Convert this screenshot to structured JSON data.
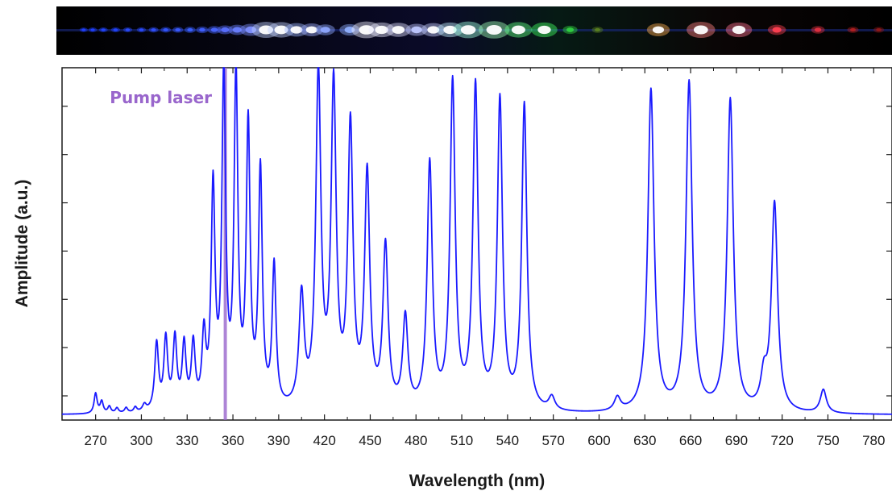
{
  "chart_data": {
    "type": "line",
    "xlabel": "Wavelength (nm)",
    "ylabel": "Amplitude (a.u.)",
    "xlim": [
      248,
      792
    ],
    "ylim": [
      0,
      1.05
    ],
    "x_ticks": [
      270,
      300,
      330,
      360,
      390,
      420,
      450,
      480,
      510,
      540,
      570,
      600,
      630,
      660,
      690,
      720,
      750,
      780
    ],
    "y_tick_labels": "none",
    "grid": false,
    "series_color": "#1a1aff",
    "baseline": 0.015,
    "peaks": [
      {
        "x": 270,
        "y": 0.06
      },
      {
        "x": 274,
        "y": 0.035
      },
      {
        "x": 279,
        "y": 0.02
      },
      {
        "x": 284,
        "y": 0.015
      },
      {
        "x": 290,
        "y": 0.015
      },
      {
        "x": 296,
        "y": 0.015
      },
      {
        "x": 302,
        "y": 0.02
      },
      {
        "x": 310,
        "y": 0.2
      },
      {
        "x": 316,
        "y": 0.21
      },
      {
        "x": 322,
        "y": 0.21
      },
      {
        "x": 328,
        "y": 0.19
      },
      {
        "x": 334,
        "y": 0.19
      },
      {
        "x": 341,
        "y": 0.21
      },
      {
        "x": 347,
        "y": 0.65
      },
      {
        "x": 354,
        "y": 0.98
      },
      {
        "x": 362,
        "y": 0.98
      },
      {
        "x": 370,
        "y": 0.83
      },
      {
        "x": 378,
        "y": 0.7
      },
      {
        "x": 387,
        "y": 0.42
      },
      {
        "x": 405,
        "y": 0.33
      },
      {
        "x": 416,
        "y": 0.99
      },
      {
        "x": 426,
        "y": 0.95
      },
      {
        "x": 437,
        "y": 0.83
      },
      {
        "x": 448,
        "y": 0.69
      },
      {
        "x": 460,
        "y": 0.48
      },
      {
        "x": 473,
        "y": 0.27
      },
      {
        "x": 489,
        "y": 0.73
      },
      {
        "x": 504,
        "y": 0.97
      },
      {
        "x": 519,
        "y": 0.96
      },
      {
        "x": 535,
        "y": 0.92
      },
      {
        "x": 551,
        "y": 0.91
      },
      {
        "x": 569,
        "y": 0.04
      },
      {
        "x": 612,
        "y": 0.04
      },
      {
        "x": 634,
        "y": 0.96
      },
      {
        "x": 659,
        "y": 0.98
      },
      {
        "x": 686,
        "y": 0.93
      },
      {
        "x": 708,
        "y": 0.09
      },
      {
        "x": 715,
        "y": 0.62
      },
      {
        "x": 747,
        "y": 0.07
      }
    ],
    "annotation": {
      "label": "Pump laser",
      "x": 355,
      "color": "#9966cc"
    }
  },
  "spectrum_image": {
    "background": "#000000",
    "spots": [
      {
        "x": 262,
        "y": 0.02,
        "color": "#2040ff"
      },
      {
        "x": 268,
        "y": 0.03,
        "color": "#2040ff"
      },
      {
        "x": 275,
        "y": 0.04,
        "color": "#2244ff"
      },
      {
        "x": 283,
        "y": 0.05,
        "color": "#2244ff"
      },
      {
        "x": 291,
        "y": 0.05,
        "color": "#2a4cff"
      },
      {
        "x": 300,
        "y": 0.06,
        "color": "#2a4cff"
      },
      {
        "x": 308,
        "y": 0.08,
        "color": "#3050ff"
      },
      {
        "x": 316,
        "y": 0.1,
        "color": "#3355ff"
      },
      {
        "x": 324,
        "y": 0.12,
        "color": "#3a5aff"
      },
      {
        "x": 332,
        "y": 0.14,
        "color": "#3a60ff"
      },
      {
        "x": 340,
        "y": 0.18,
        "color": "#4060ff"
      },
      {
        "x": 348,
        "y": 0.25,
        "color": "#4a66ff"
      },
      {
        "x": 355,
        "y": 0.35,
        "color": "#5a70ff"
      },
      {
        "x": 363,
        "y": 0.45,
        "color": "#6a80ff"
      },
      {
        "x": 372,
        "y": 0.6,
        "color": "#7f90ff"
      },
      {
        "x": 382,
        "y": 0.9,
        "color": "#bfd0ff"
      },
      {
        "x": 392,
        "y": 0.85,
        "color": "#c0d0ff"
      },
      {
        "x": 402,
        "y": 0.7,
        "color": "#a0b8ff"
      },
      {
        "x": 412,
        "y": 0.65,
        "color": "#9fb0ff"
      },
      {
        "x": 421,
        "y": 0.5,
        "color": "#8fa8ff"
      },
      {
        "x": 437,
        "y": 0.55,
        "color": "#90b0ff"
      },
      {
        "x": 448,
        "y": 0.95,
        "color": "#f0f0ff"
      },
      {
        "x": 458,
        "y": 0.8,
        "color": "#e8e8ff"
      },
      {
        "x": 469,
        "y": 0.75,
        "color": "#e0e0ff"
      },
      {
        "x": 481,
        "y": 0.6,
        "color": "#c0c8ff"
      },
      {
        "x": 492,
        "y": 0.7,
        "color": "#c8d0ff"
      },
      {
        "x": 503,
        "y": 0.8,
        "color": "#c0f0ff"
      },
      {
        "x": 515,
        "y": 0.95,
        "color": "#a0ffe0"
      },
      {
        "x": 532,
        "y": 1.0,
        "color": "#a0ffb8"
      },
      {
        "x": 548,
        "y": 0.85,
        "color": "#60ff80"
      },
      {
        "x": 565,
        "y": 0.8,
        "color": "#40ff60"
      },
      {
        "x": 582,
        "y": 0.3,
        "color": "#30d040"
      },
      {
        "x": 600,
        "y": 0.15,
        "color": "#5a8020"
      },
      {
        "x": 640,
        "y": 0.65,
        "color": "#ffb050"
      },
      {
        "x": 668,
        "y": 0.9,
        "color": "#ff8080"
      },
      {
        "x": 693,
        "y": 0.8,
        "color": "#ff7090"
      },
      {
        "x": 718,
        "y": 0.45,
        "color": "#ff4050"
      },
      {
        "x": 745,
        "y": 0.25,
        "color": "#e03040"
      },
      {
        "x": 768,
        "y": 0.15,
        "color": "#b02020"
      },
      {
        "x": 785,
        "y": 0.12,
        "color": "#901818"
      }
    ]
  }
}
